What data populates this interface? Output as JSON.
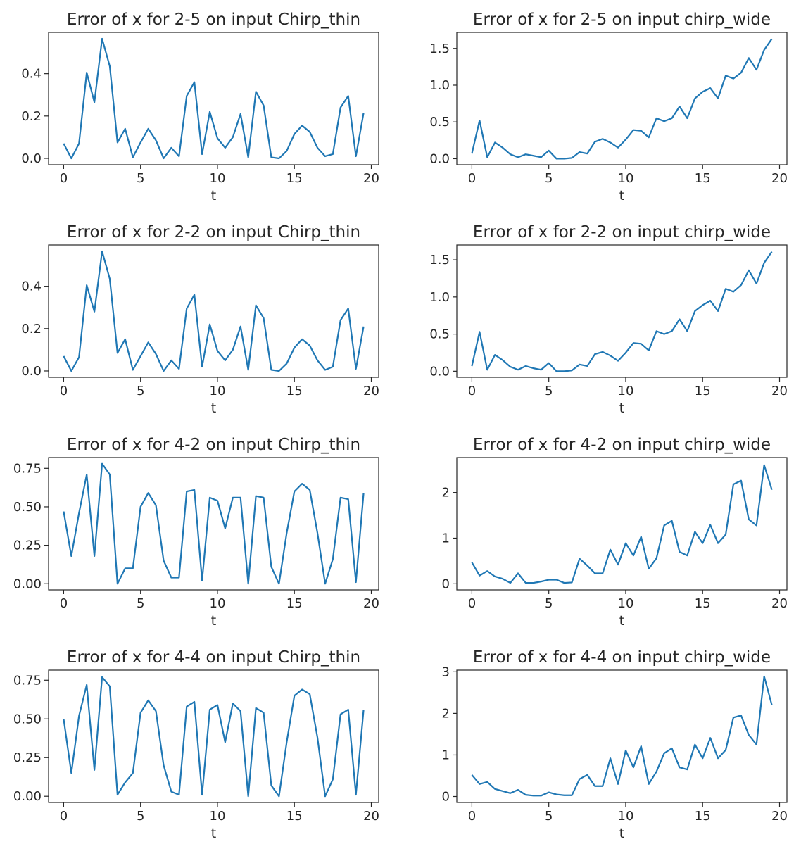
{
  "chart_data": [
    {
      "type": "line",
      "title": "Error of x for 2-5 on input Chirp_thin",
      "xlabel": "t",
      "ylabel": "",
      "xlim": [
        -0.98,
        20.48
      ],
      "ylim": [
        -0.03,
        0.595
      ],
      "xticks": [
        0,
        5,
        10,
        15,
        20
      ],
      "yticks": [
        0.0,
        0.2,
        0.4
      ],
      "ytick_labels": [
        "0.0",
        "0.2",
        "0.4"
      ],
      "grid": false,
      "color": "#1f77b4",
      "series": [
        {
          "x": [
            0,
            0.5,
            1,
            1.5,
            2,
            2.5,
            3,
            3.5,
            4,
            4.5,
            5,
            5.5,
            6,
            6.5,
            7,
            7.5,
            8,
            8.5,
            9,
            9.5,
            10,
            10.5,
            11,
            11.5,
            12,
            12.5,
            13,
            13.5,
            14,
            14.5,
            15,
            15.5,
            16,
            16.5,
            17,
            17.5,
            18,
            18.5,
            19,
            19.5
          ],
          "y": [
            0.07,
            0.0,
            0.07,
            0.405,
            0.265,
            0.565,
            0.435,
            0.075,
            0.14,
            0.005,
            0.075,
            0.14,
            0.085,
            0.0,
            0.05,
            0.01,
            0.295,
            0.36,
            0.02,
            0.22,
            0.095,
            0.05,
            0.1,
            0.21,
            0.005,
            0.315,
            0.25,
            0.005,
            0.0,
            0.035,
            0.115,
            0.155,
            0.125,
            0.05,
            0.01,
            0.02,
            0.24,
            0.295,
            0.01,
            0.215
          ]
        }
      ]
    },
    {
      "type": "line",
      "title": "Error of x for 2-5 on input chirp_wide",
      "xlabel": "t",
      "ylabel": "",
      "xlim": [
        -0.98,
        20.48
      ],
      "ylim": [
        -0.082,
        1.718
      ],
      "xticks": [
        0,
        5,
        10,
        15,
        20
      ],
      "yticks": [
        0.0,
        0.5,
        1.0,
        1.5
      ],
      "ytick_labels": [
        "0.0",
        "0.5",
        "1.0",
        "1.5"
      ],
      "grid": false,
      "color": "#1f77b4",
      "series": [
        {
          "x": [
            0,
            0.5,
            1,
            1.5,
            2,
            2.5,
            3,
            3.5,
            4,
            4.5,
            5,
            5.5,
            6,
            6.5,
            7,
            7.5,
            8,
            8.5,
            9,
            9.5,
            10,
            10.5,
            11,
            11.5,
            12,
            12.5,
            13,
            13.5,
            14,
            14.5,
            15,
            15.5,
            16,
            16.5,
            17,
            17.5,
            18,
            18.5,
            19,
            19.5
          ],
          "y": [
            0.07,
            0.52,
            0.02,
            0.22,
            0.15,
            0.06,
            0.02,
            0.06,
            0.04,
            0.02,
            0.11,
            0.0,
            0.0,
            0.01,
            0.09,
            0.07,
            0.23,
            0.27,
            0.22,
            0.15,
            0.26,
            0.39,
            0.38,
            0.29,
            0.55,
            0.51,
            0.55,
            0.71,
            0.55,
            0.82,
            0.91,
            0.96,
            0.82,
            1.13,
            1.09,
            1.17,
            1.37,
            1.21,
            1.48,
            1.63
          ]
        }
      ]
    },
    {
      "type": "line",
      "title": "Error of x for 2-2 on input Chirp_thin",
      "xlabel": "t",
      "ylabel": "",
      "xlim": [
        -0.98,
        20.48
      ],
      "ylim": [
        -0.03,
        0.595
      ],
      "xticks": [
        0,
        5,
        10,
        15,
        20
      ],
      "yticks": [
        0.0,
        0.2,
        0.4
      ],
      "ytick_labels": [
        "0.0",
        "0.2",
        "0.4"
      ],
      "grid": false,
      "color": "#1f77b4",
      "series": [
        {
          "x": [
            0,
            0.5,
            1,
            1.5,
            2,
            2.5,
            3,
            3.5,
            4,
            4.5,
            5,
            5.5,
            6,
            6.5,
            7,
            7.5,
            8,
            8.5,
            9,
            9.5,
            10,
            10.5,
            11,
            11.5,
            12,
            12.5,
            13,
            13.5,
            14,
            14.5,
            15,
            15.5,
            16,
            16.5,
            17,
            17.5,
            18,
            18.5,
            19,
            19.5
          ],
          "y": [
            0.07,
            0.0,
            0.065,
            0.405,
            0.28,
            0.565,
            0.435,
            0.085,
            0.15,
            0.005,
            0.07,
            0.135,
            0.08,
            0.0,
            0.05,
            0.01,
            0.295,
            0.36,
            0.02,
            0.22,
            0.095,
            0.05,
            0.1,
            0.21,
            0.005,
            0.31,
            0.25,
            0.005,
            0.0,
            0.035,
            0.11,
            0.15,
            0.12,
            0.05,
            0.005,
            0.02,
            0.24,
            0.295,
            0.01,
            0.21
          ]
        }
      ]
    },
    {
      "type": "line",
      "title": "Error of x for 2-2 on input chirp_wide",
      "xlabel": "t",
      "ylabel": "",
      "xlim": [
        -0.98,
        20.48
      ],
      "ylim": [
        -0.082,
        1.7
      ],
      "xticks": [
        0,
        5,
        10,
        15,
        20
      ],
      "yticks": [
        0.0,
        0.5,
        1.0,
        1.5
      ],
      "ytick_labels": [
        "0.0",
        "0.5",
        "1.0",
        "1.5"
      ],
      "grid": false,
      "color": "#1f77b4",
      "series": [
        {
          "x": [
            0,
            0.5,
            1,
            1.5,
            2,
            2.5,
            3,
            3.5,
            4,
            4.5,
            5,
            5.5,
            6,
            6.5,
            7,
            7.5,
            8,
            8.5,
            9,
            9.5,
            10,
            10.5,
            11,
            11.5,
            12,
            12.5,
            13,
            13.5,
            14,
            14.5,
            15,
            15.5,
            16,
            16.5,
            17,
            17.5,
            18,
            18.5,
            19,
            19.5
          ],
          "y": [
            0.07,
            0.53,
            0.02,
            0.22,
            0.15,
            0.06,
            0.02,
            0.07,
            0.04,
            0.02,
            0.11,
            0.0,
            0.0,
            0.01,
            0.09,
            0.07,
            0.23,
            0.26,
            0.21,
            0.14,
            0.25,
            0.38,
            0.37,
            0.28,
            0.54,
            0.5,
            0.54,
            0.7,
            0.54,
            0.81,
            0.89,
            0.95,
            0.81,
            1.11,
            1.07,
            1.16,
            1.36,
            1.18,
            1.46,
            1.61
          ]
        }
      ]
    },
    {
      "type": "line",
      "title": "Error of x for 4-2 on input Chirp_thin",
      "xlabel": "t",
      "ylabel": "",
      "xlim": [
        -0.98,
        20.48
      ],
      "ylim": [
        -0.04,
        0.82
      ],
      "xticks": [
        0,
        5,
        10,
        15,
        20
      ],
      "yticks": [
        0.0,
        0.25,
        0.5,
        0.75
      ],
      "ytick_labels": [
        "0.00",
        "0.25",
        "0.50",
        "0.75"
      ],
      "grid": false,
      "color": "#1f77b4",
      "series": [
        {
          "x": [
            0,
            0.5,
            1,
            1.5,
            2,
            2.5,
            3,
            3.5,
            4,
            4.5,
            5,
            5.5,
            6,
            6.5,
            7,
            7.5,
            8,
            8.5,
            9,
            9.5,
            10,
            10.5,
            11,
            11.5,
            12,
            12.5,
            13,
            13.5,
            14,
            14.5,
            15,
            15.5,
            16,
            16.5,
            17,
            17.5,
            18,
            18.5,
            19,
            19.5
          ],
          "y": [
            0.47,
            0.18,
            0.46,
            0.71,
            0.18,
            0.78,
            0.71,
            0.0,
            0.1,
            0.1,
            0.5,
            0.59,
            0.51,
            0.15,
            0.04,
            0.04,
            0.6,
            0.61,
            0.02,
            0.56,
            0.54,
            0.36,
            0.56,
            0.56,
            0.0,
            0.57,
            0.56,
            0.11,
            0.0,
            0.33,
            0.6,
            0.65,
            0.61,
            0.33,
            0.0,
            0.16,
            0.56,
            0.55,
            0.01,
            0.59
          ]
        }
      ]
    },
    {
      "type": "line",
      "title": "Error of x for 4-2 on input chirp_wide",
      "xlabel": "t",
      "ylabel": "",
      "xlim": [
        -0.98,
        20.48
      ],
      "ylim": [
        -0.133,
        2.765
      ],
      "xticks": [
        0,
        5,
        10,
        15,
        20
      ],
      "yticks": [
        0,
        1,
        2
      ],
      "ytick_labels": [
        "0",
        "1",
        "2"
      ],
      "grid": false,
      "color": "#1f77b4",
      "series": [
        {
          "x": [
            0,
            0.5,
            1,
            1.5,
            2,
            2.5,
            3,
            3.5,
            4,
            4.5,
            5,
            5.5,
            6,
            6.5,
            7,
            7.5,
            8,
            8.5,
            9,
            9.5,
            10,
            10.5,
            11,
            11.5,
            12,
            12.5,
            13,
            13.5,
            14,
            14.5,
            15,
            15.5,
            16,
            16.5,
            17,
            17.5,
            18,
            18.5,
            19,
            19.5
          ],
          "y": [
            0.47,
            0.18,
            0.28,
            0.16,
            0.11,
            0.02,
            0.23,
            0.02,
            0.02,
            0.05,
            0.09,
            0.09,
            0.02,
            0.03,
            0.55,
            0.4,
            0.23,
            0.23,
            0.75,
            0.42,
            0.89,
            0.62,
            1.03,
            0.33,
            0.56,
            1.28,
            1.38,
            0.7,
            0.62,
            1.14,
            0.89,
            1.29,
            0.89,
            1.08,
            2.18,
            2.26,
            1.41,
            1.28,
            2.6,
            2.06
          ]
        }
      ]
    },
    {
      "type": "line",
      "title": "Error of x for 4-4 on input Chirp_thin",
      "xlabel": "t",
      "ylabel": "",
      "xlim": [
        -0.98,
        20.48
      ],
      "ylim": [
        -0.04,
        0.815
      ],
      "xticks": [
        0,
        5,
        10,
        15,
        20
      ],
      "yticks": [
        0.0,
        0.25,
        0.5,
        0.75
      ],
      "ytick_labels": [
        "0.00",
        "0.25",
        "0.50",
        "0.75"
      ],
      "grid": false,
      "color": "#1f77b4",
      "series": [
        {
          "x": [
            0,
            0.5,
            1,
            1.5,
            2,
            2.5,
            3,
            3.5,
            4,
            4.5,
            5,
            5.5,
            6,
            6.5,
            7,
            7.5,
            8,
            8.5,
            9,
            9.5,
            10,
            10.5,
            11,
            11.5,
            12,
            12.5,
            13,
            13.5,
            14,
            14.5,
            15,
            15.5,
            16,
            16.5,
            17,
            17.5,
            18,
            18.5,
            19,
            19.5
          ],
          "y": [
            0.5,
            0.15,
            0.52,
            0.72,
            0.17,
            0.77,
            0.71,
            0.01,
            0.09,
            0.15,
            0.54,
            0.62,
            0.55,
            0.2,
            0.03,
            0.01,
            0.58,
            0.61,
            0.01,
            0.56,
            0.59,
            0.35,
            0.6,
            0.55,
            0.0,
            0.57,
            0.54,
            0.07,
            0.0,
            0.35,
            0.65,
            0.69,
            0.66,
            0.38,
            0.0,
            0.11,
            0.53,
            0.56,
            0.01,
            0.56
          ]
        }
      ]
    },
    {
      "type": "line",
      "title": "Error of x for 4-4 on input chirp_wide",
      "xlabel": "t",
      "ylabel": "",
      "xlim": [
        -0.98,
        20.48
      ],
      "ylim": [
        -0.144,
        3.04
      ],
      "xticks": [
        0,
        5,
        10,
        15,
        20
      ],
      "yticks": [
        0,
        1,
        2,
        3
      ],
      "ytick_labels": [
        "0",
        "1",
        "2",
        "3"
      ],
      "grid": false,
      "color": "#1f77b4",
      "series": [
        {
          "x": [
            0,
            0.5,
            1,
            1.5,
            2,
            2.5,
            3,
            3.5,
            4,
            4.5,
            5,
            5.5,
            6,
            6.5,
            7,
            7.5,
            8,
            8.5,
            9,
            9.5,
            10,
            10.5,
            11,
            11.5,
            12,
            12.5,
            13,
            13.5,
            14,
            14.5,
            15,
            15.5,
            16,
            16.5,
            17,
            17.5,
            18,
            18.5,
            19,
            19.5
          ],
          "y": [
            0.52,
            0.3,
            0.35,
            0.18,
            0.13,
            0.08,
            0.16,
            0.04,
            0.02,
            0.02,
            0.1,
            0.05,
            0.03,
            0.03,
            0.42,
            0.52,
            0.25,
            0.25,
            0.92,
            0.3,
            1.11,
            0.7,
            1.21,
            0.3,
            0.6,
            1.04,
            1.16,
            0.7,
            0.65,
            1.25,
            0.92,
            1.41,
            0.92,
            1.12,
            1.9,
            1.95,
            1.48,
            1.25,
            2.89,
            2.2
          ]
        }
      ]
    }
  ]
}
